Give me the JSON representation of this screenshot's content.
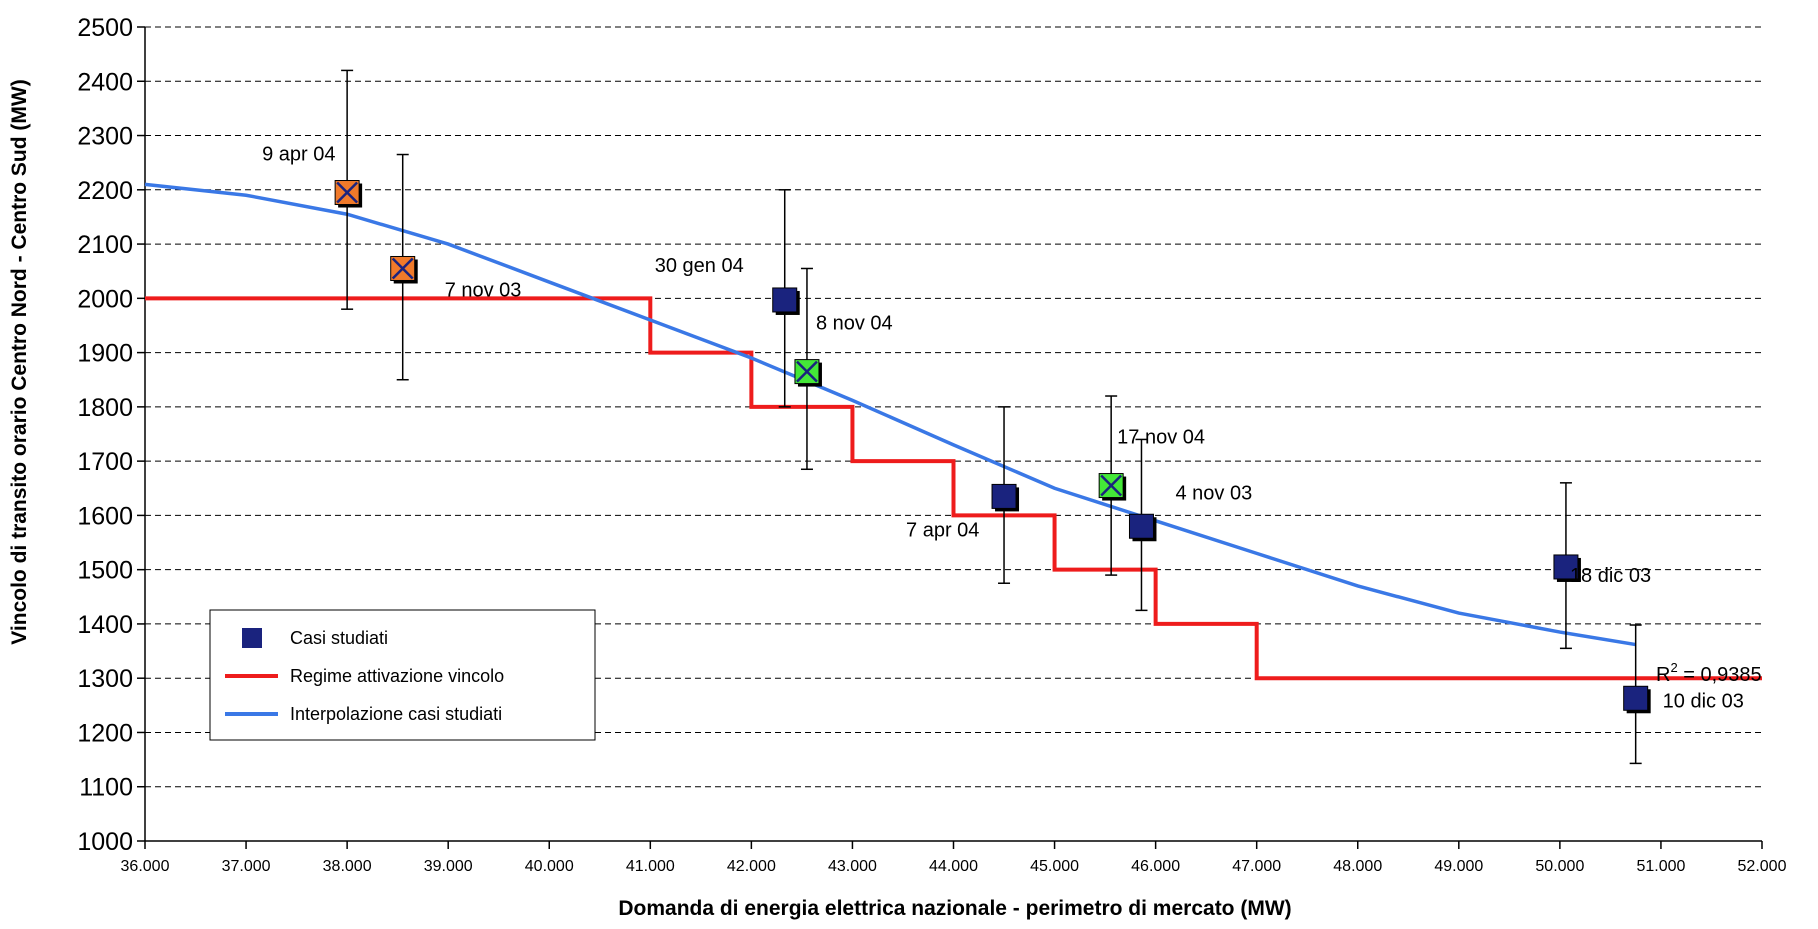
{
  "chart_data": {
    "type": "scatter",
    "xlabel": "Domanda di energia elettrica nazionale - perimetro di mercato (MW)",
    "ylabel": "Vincolo di transito orario Centro Nord - Centro Sud (MW)",
    "xlim": [
      36000,
      52000
    ],
    "ylim": [
      1000,
      2500
    ],
    "x_ticks": [
      36000,
      37000,
      38000,
      39000,
      40000,
      41000,
      42000,
      43000,
      44000,
      45000,
      46000,
      47000,
      48000,
      49000,
      50000,
      51000,
      52000
    ],
    "x_tick_labels": [
      "36.000",
      "37.000",
      "38.000",
      "39.000",
      "40.000",
      "41.000",
      "42.000",
      "43.000",
      "44.000",
      "45.000",
      "46.000",
      "47.000",
      "48.000",
      "49.000",
      "50.000",
      "51.000",
      "52.000"
    ],
    "y_ticks": [
      1000,
      1100,
      1200,
      1300,
      1400,
      1500,
      1600,
      1700,
      1800,
      1900,
      2000,
      2100,
      2200,
      2300,
      2400,
      2500
    ],
    "y_tick_labels": [
      "1000",
      "1100",
      "1200",
      "1300",
      "1400",
      "1500",
      "1600",
      "1700",
      "1800",
      "1900",
      "2000",
      "2100",
      "2200",
      "2300",
      "2400",
      "2500"
    ],
    "grid": "horizontal dashed",
    "legend_position": "bottom-left",
    "points": [
      {
        "label": "9 apr 04",
        "x": 38000,
        "y": 2195,
        "err_low": 1980,
        "err_high": 2420,
        "fill": "#f07a2a",
        "cross": true
      },
      {
        "label": "7 nov 03",
        "x": 38550,
        "y": 2055,
        "err_low": 1850,
        "err_high": 2265,
        "fill": "#f07a2a",
        "cross": true
      },
      {
        "label": "30 gen 04",
        "x": 42330,
        "y": 1997,
        "err_low": 1800,
        "err_high": 2200,
        "fill": "#1a237e",
        "cross": false
      },
      {
        "label": "8 nov 04",
        "x": 42550,
        "y": 1865,
        "err_low": 1685,
        "err_high": 2055,
        "fill": "#44e838",
        "cross": true
      },
      {
        "label": "7 apr 04",
        "x": 44500,
        "y": 1635,
        "err_low": 1475,
        "err_high": 1800,
        "fill": "#1a237e",
        "cross": false
      },
      {
        "label": "17 nov 04",
        "x": 45560,
        "y": 1655,
        "err_low": 1490,
        "err_high": 1820,
        "fill": "#44e838",
        "cross": true
      },
      {
        "label": "4 nov 03",
        "x": 45860,
        "y": 1580,
        "err_low": 1425,
        "err_high": 1740,
        "fill": "#1a237e",
        "cross": false
      },
      {
        "label": "18 dic 03",
        "x": 50060,
        "y": 1505,
        "err_low": 1355,
        "err_high": 1660,
        "fill": "#1a237e",
        "cross": false
      },
      {
        "label": "10 dic 03",
        "x": 50750,
        "y": 1263,
        "err_low": 1143,
        "err_high": 1398,
        "fill": "#1a237e",
        "cross": false
      }
    ],
    "step_series": {
      "name": "Regime attivazione vincolo",
      "color": "#ee1c1c",
      "x": [
        36000,
        41000,
        41000,
        42000,
        42000,
        43000,
        43000,
        44000,
        44000,
        45000,
        45000,
        46000,
        46000,
        47000,
        47000,
        52000
      ],
      "y": [
        2000,
        2000,
        1900,
        1900,
        1800,
        1800,
        1700,
        1700,
        1600,
        1600,
        1500,
        1500,
        1400,
        1400,
        1300,
        1300
      ]
    },
    "trend_series": {
      "name": "Interpolazione casi studiati",
      "color": "#3a78e6",
      "x": [
        36000,
        37000,
        38000,
        39000,
        40000,
        41000,
        42000,
        43000,
        44000,
        45000,
        46000,
        47000,
        48000,
        49000,
        50000,
        50750
      ],
      "y": [
        2210,
        2190,
        2155,
        2100,
        2030,
        1960,
        1890,
        1812,
        1730,
        1650,
        1590,
        1530,
        1470,
        1420,
        1385,
        1362
      ]
    },
    "legend": [
      {
        "label": "Casi studiati",
        "kind": "marker",
        "color": "#1a237e"
      },
      {
        "label": "Regime attivazione vincolo",
        "kind": "line",
        "color": "#ee1c1c"
      },
      {
        "label": "Interpolazione casi studiati",
        "kind": "line",
        "color": "#3a78e6"
      }
    ],
    "r2_label": "R",
    "r2_superscript": "2",
    "r2_value": " = 0,9385"
  }
}
